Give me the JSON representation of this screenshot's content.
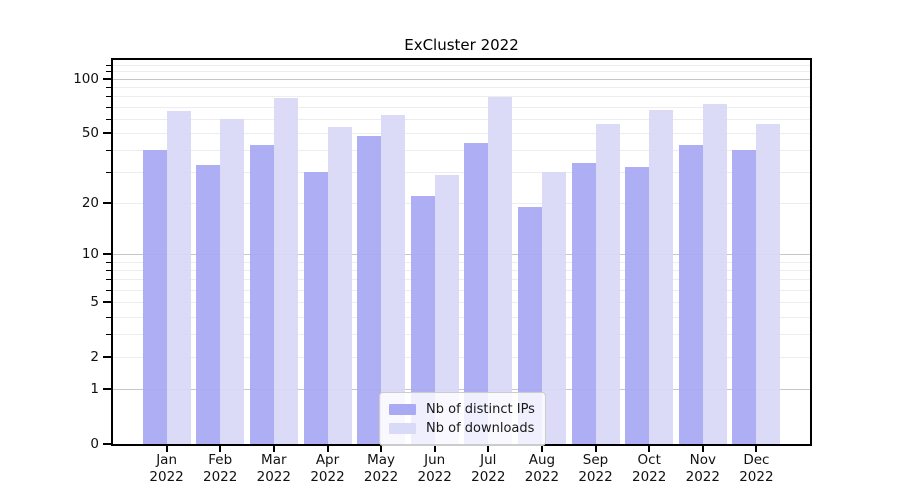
{
  "chart_data": {
    "type": "bar",
    "title": "ExCluster 2022",
    "categories": [
      "Jan",
      "Feb",
      "Mar",
      "Apr",
      "May",
      "Jun",
      "Jul",
      "Aug",
      "Sep",
      "Oct",
      "Nov",
      "Dec"
    ],
    "year_label": "2022",
    "series": [
      {
        "name": "Nb of distinct IPs",
        "color": "#aaaaf4",
        "values": [
          40,
          33,
          43,
          30,
          48,
          22,
          44,
          19,
          34,
          32,
          43,
          40
        ]
      },
      {
        "name": "Nb of downloads",
        "color": "#d9d9f8",
        "values": [
          66,
          60,
          78,
          54,
          63,
          29,
          79,
          30,
          56,
          67,
          72,
          56
        ]
      }
    ],
    "yscale": "log1p",
    "ylim": [
      0,
      127
    ],
    "y_major_ticks": [
      0,
      1,
      2,
      5,
      10,
      20,
      50,
      100
    ],
    "y_decade_gridlines": [
      1,
      10,
      100
    ],
    "y_minor_gridlines": [
      2,
      3,
      4,
      5,
      6,
      7,
      8,
      9,
      20,
      30,
      40,
      50,
      60,
      70,
      80,
      90,
      110,
      120
    ],
    "grid": true,
    "legend_position": "lower center"
  },
  "legend": {
    "items": [
      {
        "label": "Nb of distinct IPs",
        "color": "#aaaaf4"
      },
      {
        "label": "Nb of downloads",
        "color": "#d9d9f8"
      }
    ]
  }
}
